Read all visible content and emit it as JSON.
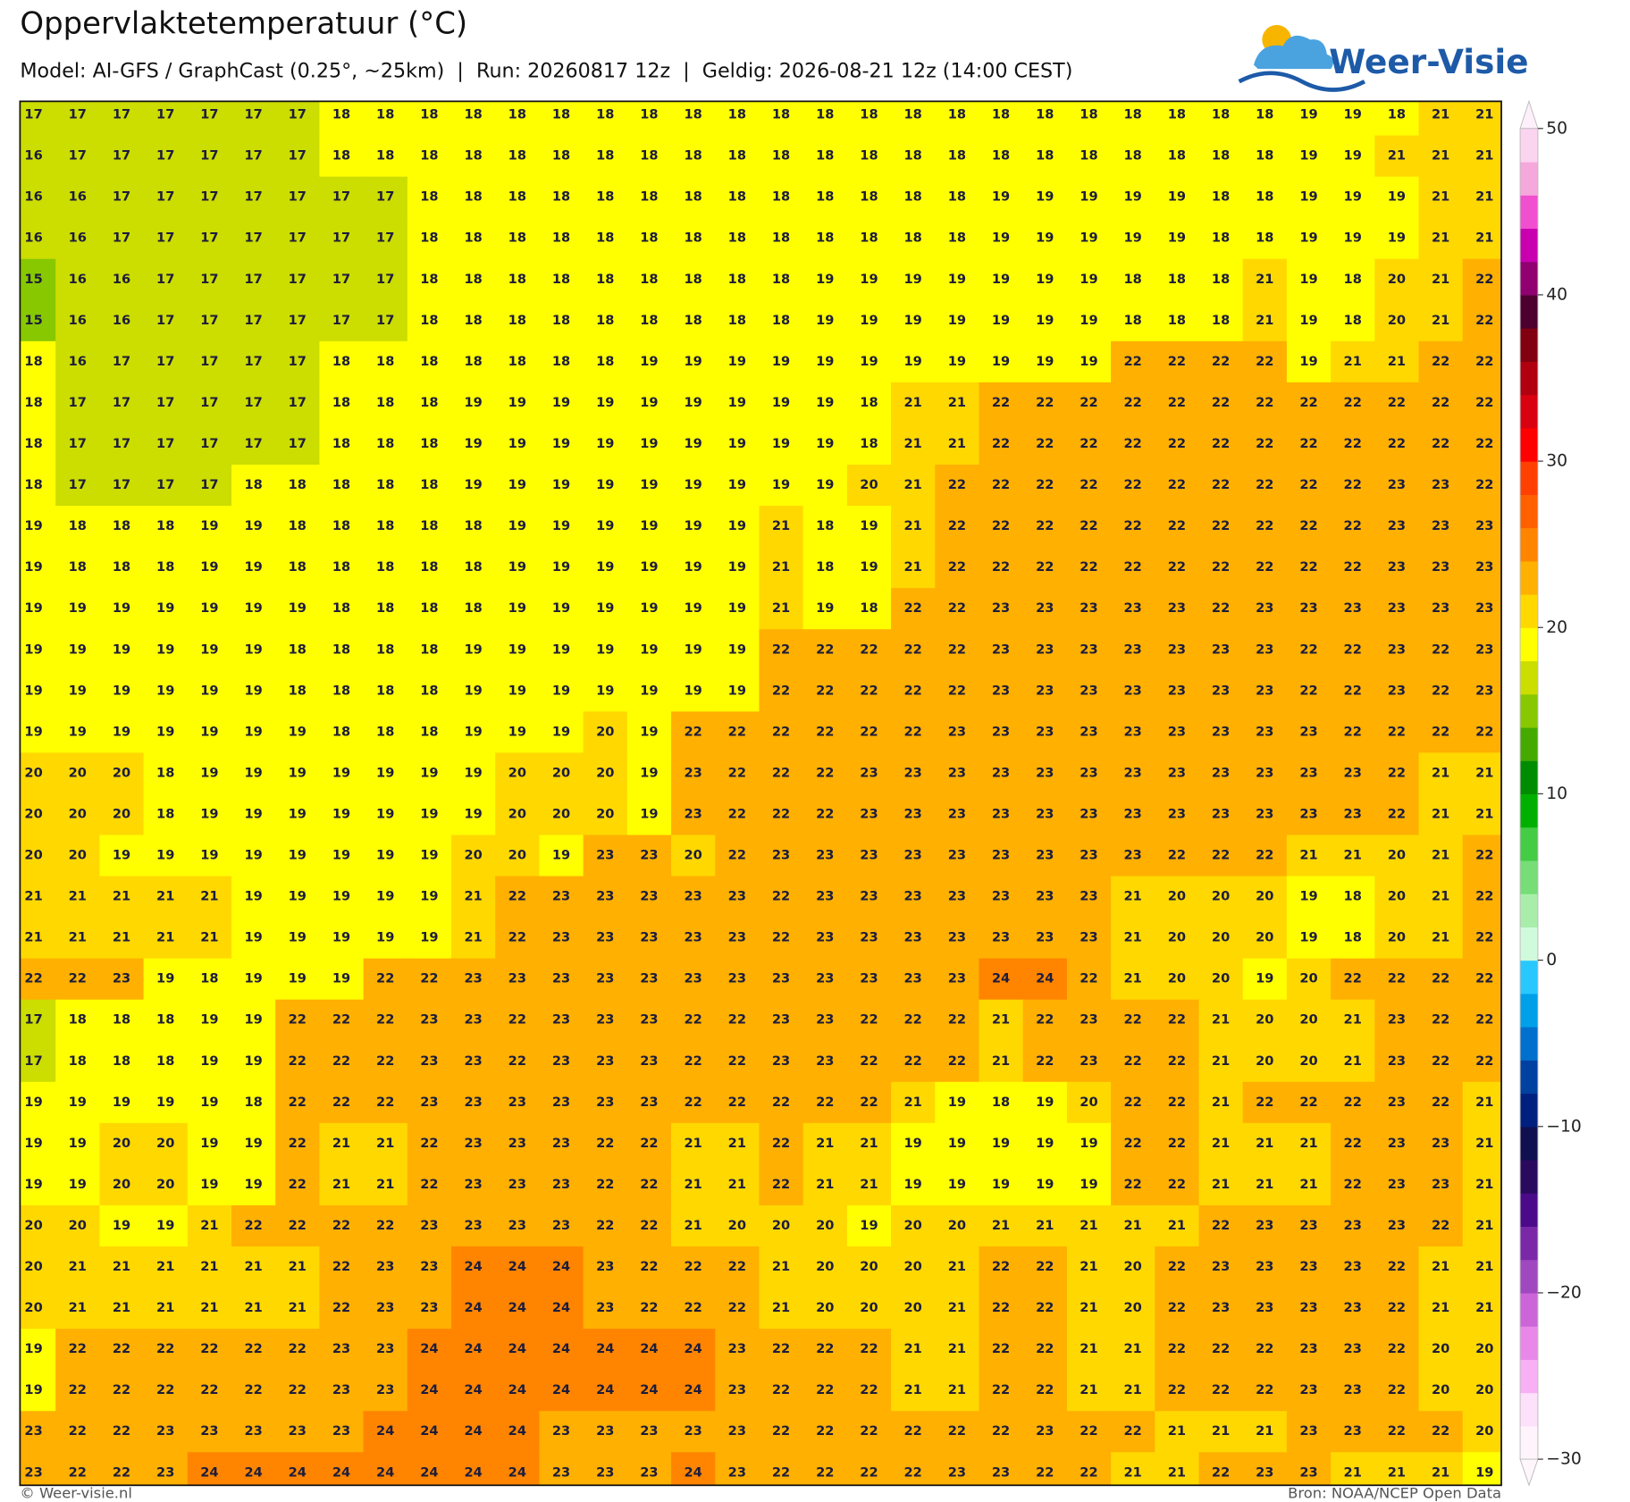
{
  "header": {
    "title": "Oppervlaktetemperatuur (°C)",
    "subtitle": "Model: AI-GFS / GraphCast (0.25°, ~25km)  |  Run: 20260817 12z  |  Geldig: 2026-08-21 12z (14:00 CEST)",
    "logo": "Weer-Visie"
  },
  "chart_data": {
    "type": "heatmap",
    "values": [
      [
        17,
        17,
        17,
        17,
        17,
        17,
        17,
        18,
        18,
        18,
        18,
        18,
        18,
        18,
        18,
        18,
        18,
        18,
        18,
        18,
        18,
        18,
        18,
        18,
        18,
        18,
        18,
        18,
        18,
        19,
        19,
        18,
        21,
        21
      ],
      [
        16,
        17,
        17,
        17,
        17,
        17,
        17,
        18,
        18,
        18,
        18,
        18,
        18,
        18,
        18,
        18,
        18,
        18,
        18,
        18,
        18,
        18,
        18,
        18,
        18,
        18,
        18,
        18,
        18,
        19,
        19,
        21,
        21,
        21
      ],
      [
        16,
        16,
        17,
        17,
        17,
        17,
        17,
        17,
        17,
        18,
        18,
        18,
        18,
        18,
        18,
        18,
        18,
        18,
        18,
        18,
        18,
        18,
        19,
        19,
        19,
        19,
        19,
        18,
        18,
        19,
        19,
        19,
        21,
        21
      ],
      [
        16,
        16,
        17,
        17,
        17,
        17,
        17,
        17,
        17,
        18,
        18,
        18,
        18,
        18,
        18,
        18,
        18,
        18,
        18,
        18,
        18,
        18,
        19,
        19,
        19,
        19,
        19,
        18,
        18,
        19,
        19,
        19,
        21,
        21
      ],
      [
        15,
        16,
        16,
        17,
        17,
        17,
        17,
        17,
        17,
        18,
        18,
        18,
        18,
        18,
        18,
        18,
        18,
        18,
        19,
        19,
        19,
        19,
        19,
        19,
        19,
        18,
        18,
        18,
        21,
        19,
        18,
        20,
        21,
        22
      ],
      [
        15,
        16,
        16,
        17,
        17,
        17,
        17,
        17,
        17,
        18,
        18,
        18,
        18,
        18,
        18,
        18,
        18,
        18,
        19,
        19,
        19,
        19,
        19,
        19,
        19,
        18,
        18,
        18,
        21,
        19,
        18,
        20,
        21,
        22
      ],
      [
        18,
        16,
        17,
        17,
        17,
        17,
        17,
        18,
        18,
        18,
        18,
        18,
        18,
        18,
        19,
        19,
        19,
        19,
        19,
        19,
        19,
        19,
        19,
        19,
        19,
        22,
        22,
        22,
        22,
        19,
        21,
        21,
        22,
        22
      ],
      [
        18,
        17,
        17,
        17,
        17,
        17,
        17,
        18,
        18,
        18,
        19,
        19,
        19,
        19,
        19,
        19,
        19,
        19,
        19,
        18,
        21,
        21,
        22,
        22,
        22,
        22,
        22,
        22,
        22,
        22,
        22,
        22,
        22,
        22
      ],
      [
        18,
        17,
        17,
        17,
        17,
        17,
        17,
        18,
        18,
        18,
        19,
        19,
        19,
        19,
        19,
        19,
        19,
        19,
        19,
        18,
        21,
        21,
        22,
        22,
        22,
        22,
        22,
        22,
        22,
        22,
        22,
        22,
        22,
        22
      ],
      [
        18,
        17,
        17,
        17,
        17,
        18,
        18,
        18,
        18,
        18,
        19,
        19,
        19,
        19,
        19,
        19,
        19,
        19,
        19,
        20,
        21,
        22,
        22,
        22,
        22,
        22,
        22,
        22,
        22,
        22,
        22,
        23,
        23,
        22
      ],
      [
        19,
        18,
        18,
        18,
        19,
        19,
        18,
        18,
        18,
        18,
        18,
        19,
        19,
        19,
        19,
        19,
        19,
        21,
        18,
        19,
        21,
        22,
        22,
        22,
        22,
        22,
        22,
        22,
        22,
        22,
        22,
        23,
        23,
        23
      ],
      [
        19,
        18,
        18,
        18,
        19,
        19,
        18,
        18,
        18,
        18,
        18,
        19,
        19,
        19,
        19,
        19,
        19,
        21,
        18,
        19,
        21,
        22,
        22,
        22,
        22,
        22,
        22,
        22,
        22,
        22,
        22,
        23,
        23,
        23
      ],
      [
        19,
        19,
        19,
        19,
        19,
        19,
        19,
        18,
        18,
        18,
        18,
        19,
        19,
        19,
        19,
        19,
        19,
        21,
        19,
        18,
        22,
        22,
        23,
        23,
        23,
        23,
        23,
        22,
        23,
        23,
        23,
        23,
        23,
        23
      ],
      [
        19,
        19,
        19,
        19,
        19,
        19,
        18,
        18,
        18,
        18,
        19,
        19,
        19,
        19,
        19,
        19,
        19,
        22,
        22,
        22,
        22,
        22,
        23,
        23,
        23,
        23,
        23,
        23,
        23,
        22,
        22,
        23,
        22,
        23
      ],
      [
        19,
        19,
        19,
        19,
        19,
        19,
        18,
        18,
        18,
        18,
        19,
        19,
        19,
        19,
        19,
        19,
        19,
        22,
        22,
        22,
        22,
        22,
        23,
        23,
        23,
        23,
        23,
        23,
        23,
        22,
        22,
        23,
        22,
        23
      ],
      [
        19,
        19,
        19,
        19,
        19,
        19,
        19,
        18,
        18,
        18,
        19,
        19,
        19,
        20,
        19,
        22,
        22,
        22,
        22,
        22,
        22,
        23,
        23,
        23,
        23,
        23,
        23,
        23,
        23,
        23,
        22,
        22,
        22,
        22
      ],
      [
        20,
        20,
        20,
        18,
        19,
        19,
        19,
        19,
        19,
        19,
        19,
        20,
        20,
        20,
        19,
        23,
        22,
        22,
        22,
        23,
        23,
        23,
        23,
        23,
        23,
        23,
        23,
        23,
        23,
        23,
        23,
        22,
        21,
        21
      ],
      [
        20,
        20,
        20,
        18,
        19,
        19,
        19,
        19,
        19,
        19,
        19,
        20,
        20,
        20,
        19,
        23,
        22,
        22,
        22,
        23,
        23,
        23,
        23,
        23,
        23,
        23,
        23,
        23,
        23,
        23,
        23,
        22,
        21,
        21
      ],
      [
        20,
        20,
        19,
        19,
        19,
        19,
        19,
        19,
        19,
        19,
        20,
        20,
        19,
        23,
        23,
        20,
        22,
        23,
        23,
        23,
        23,
        23,
        23,
        23,
        23,
        23,
        22,
        22,
        22,
        21,
        21,
        20,
        21,
        22
      ],
      [
        21,
        21,
        21,
        21,
        21,
        19,
        19,
        19,
        19,
        19,
        21,
        22,
        23,
        23,
        23,
        23,
        23,
        22,
        23,
        23,
        23,
        23,
        23,
        23,
        23,
        21,
        20,
        20,
        20,
        19,
        18,
        20,
        21,
        22
      ],
      [
        21,
        21,
        21,
        21,
        21,
        19,
        19,
        19,
        19,
        19,
        21,
        22,
        23,
        23,
        23,
        23,
        23,
        22,
        23,
        23,
        23,
        23,
        23,
        23,
        23,
        21,
        20,
        20,
        20,
        19,
        18,
        20,
        21,
        22
      ],
      [
        22,
        22,
        23,
        19,
        18,
        19,
        19,
        19,
        22,
        22,
        23,
        23,
        23,
        23,
        23,
        23,
        23,
        23,
        23,
        23,
        23,
        23,
        24,
        24,
        22,
        21,
        20,
        20,
        19,
        20,
        22,
        22,
        22,
        22
      ],
      [
        17,
        18,
        18,
        18,
        19,
        19,
        22,
        22,
        22,
        23,
        23,
        22,
        23,
        23,
        23,
        22,
        22,
        23,
        23,
        22,
        22,
        22,
        21,
        22,
        23,
        22,
        22,
        21,
        20,
        20,
        21,
        23,
        22,
        22
      ],
      [
        17,
        18,
        18,
        18,
        19,
        19,
        22,
        22,
        22,
        23,
        23,
        22,
        23,
        23,
        23,
        22,
        22,
        23,
        23,
        22,
        22,
        22,
        21,
        22,
        23,
        22,
        22,
        21,
        20,
        20,
        21,
        23,
        22,
        22
      ],
      [
        19,
        19,
        19,
        19,
        19,
        18,
        22,
        22,
        22,
        23,
        23,
        23,
        23,
        23,
        23,
        22,
        22,
        22,
        22,
        22,
        21,
        19,
        18,
        19,
        20,
        22,
        22,
        21,
        22,
        22,
        22,
        23,
        22,
        21
      ],
      [
        19,
        19,
        20,
        20,
        19,
        19,
        22,
        21,
        21,
        22,
        23,
        23,
        23,
        22,
        22,
        21,
        21,
        22,
        21,
        21,
        19,
        19,
        19,
        19,
        19,
        22,
        22,
        21,
        21,
        21,
        22,
        23,
        23,
        21
      ],
      [
        19,
        19,
        20,
        20,
        19,
        19,
        22,
        21,
        21,
        22,
        23,
        23,
        23,
        22,
        22,
        21,
        21,
        22,
        21,
        21,
        19,
        19,
        19,
        19,
        19,
        22,
        22,
        21,
        21,
        21,
        22,
        23,
        23,
        21
      ],
      [
        20,
        20,
        19,
        19,
        21,
        22,
        22,
        22,
        22,
        23,
        23,
        23,
        23,
        22,
        22,
        21,
        20,
        20,
        20,
        19,
        20,
        20,
        21,
        21,
        21,
        21,
        21,
        22,
        23,
        23,
        23,
        23,
        22,
        21
      ],
      [
        20,
        21,
        21,
        21,
        21,
        21,
        21,
        22,
        23,
        23,
        24,
        24,
        24,
        23,
        22,
        22,
        22,
        21,
        20,
        20,
        20,
        21,
        22,
        22,
        21,
        20,
        22,
        23,
        23,
        23,
        23,
        22,
        21,
        21
      ],
      [
        20,
        21,
        21,
        21,
        21,
        21,
        21,
        22,
        23,
        23,
        24,
        24,
        24,
        23,
        22,
        22,
        22,
        21,
        20,
        20,
        20,
        21,
        22,
        22,
        21,
        20,
        22,
        23,
        23,
        23,
        23,
        22,
        21,
        21
      ],
      [
        19,
        22,
        22,
        22,
        22,
        22,
        22,
        23,
        23,
        24,
        24,
        24,
        24,
        24,
        24,
        24,
        23,
        22,
        22,
        22,
        21,
        21,
        22,
        22,
        21,
        21,
        22,
        22,
        22,
        23,
        23,
        22,
        20,
        20
      ],
      [
        19,
        22,
        22,
        22,
        22,
        22,
        22,
        23,
        23,
        24,
        24,
        24,
        24,
        24,
        24,
        24,
        23,
        22,
        22,
        22,
        21,
        21,
        22,
        22,
        21,
        21,
        22,
        22,
        22,
        23,
        23,
        22,
        20,
        20
      ],
      [
        23,
        22,
        22,
        23,
        23,
        23,
        23,
        23,
        24,
        24,
        24,
        24,
        23,
        23,
        23,
        23,
        23,
        22,
        22,
        22,
        22,
        22,
        22,
        23,
        22,
        22,
        21,
        21,
        21,
        23,
        23,
        22,
        22,
        20
      ],
      [
        23,
        22,
        22,
        23,
        24,
        24,
        24,
        24,
        24,
        24,
        24,
        24,
        23,
        23,
        23,
        24,
        23,
        22,
        22,
        22,
        22,
        23,
        23,
        22,
        22,
        21,
        21,
        22,
        23,
        23,
        21,
        21,
        21,
        19
      ]
    ],
    "clim": [
      -30,
      50
    ],
    "cticks": [
      {
        "value": -30,
        "label": "−30"
      },
      {
        "value": -20,
        "label": "−20"
      },
      {
        "value": -10,
        "label": "−10"
      },
      0,
      10,
      20,
      30,
      40,
      50
    ],
    "colors": [
      "#fff4fc",
      "#fde0fa",
      "#f8b0f4",
      "#e888e8",
      "#cc66d8",
      "#a048c0",
      "#7a28a8",
      "#4a0a8a",
      "#2a0a5e",
      "#101050",
      "#002080",
      "#0040a0",
      "#0070cc",
      "#00a0e8",
      "#28c8ff",
      "#d0fadc",
      "#a8eeaa",
      "#77dd77",
      "#44cc44",
      "#00b000",
      "#008c00",
      "#44aa00",
      "#88c800",
      "#ccdd00",
      "#ffff00",
      "#ffd800",
      "#ffb000",
      "#ff8500",
      "#ff6000",
      "#ff4000",
      "#ff0000",
      "#d90010",
      "#b00010",
      "#800010",
      "#4d0030",
      "#900070",
      "#c800b0",
      "#f04fcf",
      "#f5a8dc",
      "#fbd4f0"
    ],
    "label_color": "#1c1c3c"
  },
  "footer": {
    "left": "© Weer-visie.nl",
    "right": "Bron: NOAA/NCEP Open Data"
  }
}
